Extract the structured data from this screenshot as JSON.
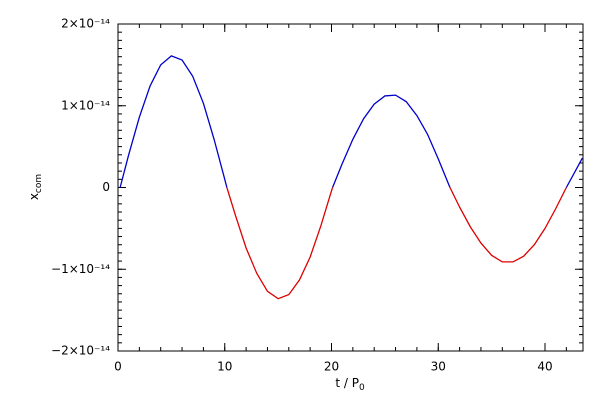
{
  "chart_data": {
    "type": "line",
    "xlabel": {
      "main": "t / P",
      "sub": "0"
    },
    "ylabel": {
      "main": "x",
      "sub": "com"
    },
    "x": [
      0.2,
      1,
      2,
      3,
      4,
      5,
      6,
      7,
      8,
      9,
      10,
      10.2,
      11,
      12,
      13,
      14,
      15,
      16,
      17,
      18,
      19,
      20,
      20.1,
      21,
      22,
      23,
      24,
      25,
      26,
      27,
      28,
      29,
      30,
      31,
      31.1,
      32,
      33,
      34,
      35,
      36,
      37,
      38,
      39,
      40,
      41,
      42,
      43,
      43.5
    ],
    "series": [
      {
        "color": "#0000cc",
        "values": [
          0,
          4e-15,
          8.6e-15,
          1.24e-14,
          1.5e-14,
          1.61e-14,
          1.56e-14,
          1.36e-14,
          1.03e-14,
          5.9e-15,
          1e-15,
          0,
          null,
          null,
          null,
          null,
          null,
          null,
          null,
          null,
          null,
          null,
          0,
          2.9e-15,
          5.9e-15,
          8.4e-15,
          1.02e-14,
          1.12e-14,
          1.13e-14,
          1.05e-14,
          8.8e-15,
          6.5e-15,
          3.5e-15,
          3e-16,
          0,
          null,
          null,
          null,
          null,
          null,
          null,
          null,
          null,
          null,
          null,
          0,
          2.4e-15,
          3.6e-15
        ]
      },
      {
        "color": "#dd0000",
        "values": [
          null,
          null,
          null,
          null,
          null,
          null,
          null,
          null,
          null,
          null,
          null,
          0,
          -3.4e-15,
          -7.4e-15,
          -1.05e-14,
          -1.27e-14,
          -1.36e-14,
          -1.31e-14,
          -1.13e-14,
          -8.5e-15,
          -4.7e-15,
          -4e-16,
          0,
          null,
          null,
          null,
          null,
          null,
          null,
          null,
          null,
          null,
          null,
          null,
          0,
          -2.4e-15,
          -4.8e-15,
          -6.8e-15,
          -8.3e-15,
          -9.1e-15,
          -9.1e-15,
          -8.4e-15,
          -7e-15,
          -5e-15,
          -2.6e-15,
          0,
          null,
          null
        ]
      }
    ],
    "xlim": [
      0,
      43.56
    ],
    "xticks": [
      0,
      10,
      20,
      30,
      40
    ],
    "ylim": [
      -2e-14,
      2e-14
    ],
    "yticks": [
      {
        "value": -2e-14,
        "label": "−2×10⁻¹⁴"
      },
      {
        "value": -1e-14,
        "label": "−1×10⁻¹⁴"
      },
      0,
      {
        "value": 1e-14,
        "label": "1×10⁻¹⁴"
      },
      {
        "value": 2e-14,
        "label": "2×10⁻¹⁴"
      }
    ]
  }
}
